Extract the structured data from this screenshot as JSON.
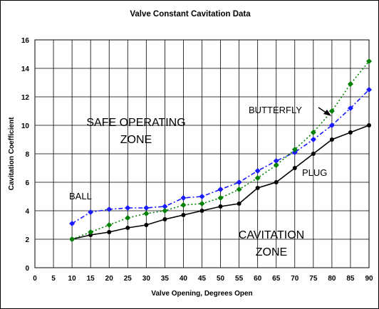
{
  "chart_data": {
    "type": "line",
    "title": "Valve Constant Cavitation Data",
    "xlabel": "Valve Opening, Degrees Open",
    "ylabel": "Cavitation Coefficient",
    "xlim": [
      0,
      90
    ],
    "ylim": [
      0,
      16
    ],
    "x_ticks": [
      "0",
      "5",
      "10",
      "15",
      "20",
      "25",
      "30",
      "35",
      "40",
      "45",
      "50",
      "55",
      "60",
      "65",
      "70",
      "75",
      "80",
      "85",
      "90"
    ],
    "y_ticks": [
      "0",
      "2",
      "4",
      "6",
      "8",
      "10",
      "12",
      "14",
      "16"
    ],
    "grid": true,
    "x": [
      10,
      15,
      20,
      25,
      30,
      35,
      40,
      45,
      50,
      55,
      60,
      65,
      70,
      75,
      80,
      85,
      90
    ],
    "series": [
      {
        "name": "PLUG",
        "color": "#000000",
        "style": "solid",
        "marker": "circle",
        "values": [
          2.0,
          2.3,
          2.5,
          2.8,
          3.0,
          3.4,
          3.7,
          4.0,
          4.3,
          4.5,
          5.6,
          6.0,
          7.0,
          8.0,
          9.0,
          9.5,
          10.0
        ]
      },
      {
        "name": "BALL",
        "color": "#1a1aff",
        "style": "dashdot",
        "marker": "diamond",
        "values": [
          3.1,
          3.9,
          4.1,
          4.2,
          4.2,
          4.3,
          4.9,
          5.0,
          5.5,
          6.0,
          6.8,
          7.5,
          8.1,
          9.0,
          10.0,
          11.2,
          12.5
        ]
      },
      {
        "name": "BUTTERFLY",
        "color": "#008000",
        "style": "dotted",
        "marker": "diamond",
        "values": [
          2.0,
          2.5,
          3.0,
          3.5,
          3.8,
          4.0,
          4.4,
          4.5,
          4.9,
          5.5,
          6.3,
          7.2,
          8.3,
          9.5,
          11.0,
          12.9,
          14.5
        ]
      }
    ],
    "annotations": [
      {
        "id": "ann_ball",
        "text": "BALL"
      },
      {
        "id": "ann_butterfly",
        "text": "BUTTERFLY"
      },
      {
        "id": "ann_plug",
        "text": "PLUG"
      },
      {
        "id": "ann_safe1",
        "text": "SAFE OPERATING"
      },
      {
        "id": "ann_safe2",
        "text": "ZONE"
      },
      {
        "id": "ann_cav1",
        "text": "CAVITATION"
      },
      {
        "id": "ann_cav2",
        "text": "ZONE"
      }
    ]
  }
}
